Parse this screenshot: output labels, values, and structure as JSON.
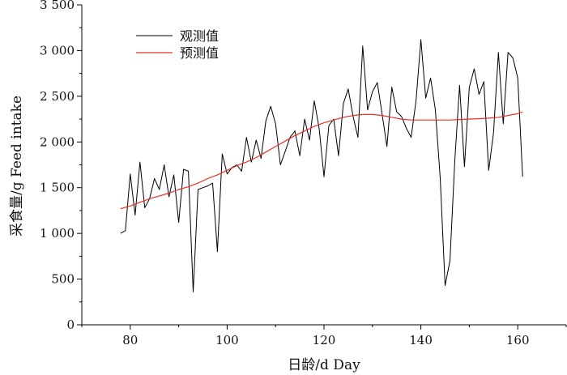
{
  "chart_data": {
    "type": "line",
    "xlabel": "日龄/d Day",
    "ylabel": "采食量/g Feed intake",
    "xlim": [
      70,
      170
    ],
    "ylim": [
      0,
      3500
    ],
    "x_ticks": [
      80,
      100,
      120,
      140,
      160
    ],
    "y_ticks": [
      0,
      500,
      1000,
      1500,
      2000,
      2500,
      3000,
      3500
    ],
    "y_tick_labels": [
      "0",
      "500",
      "1 000",
      "1 500",
      "2 000",
      "2 500",
      "3 000",
      "3 500"
    ],
    "grid": false,
    "legend_position": "top-left",
    "series": [
      {
        "name": "观测值",
        "color": "#000000",
        "x": [
          78,
          79,
          80,
          81,
          82,
          83,
          84,
          85,
          86,
          87,
          88,
          89,
          90,
          91,
          92,
          93,
          94,
          95,
          96,
          97,
          98,
          99,
          100,
          101,
          102,
          103,
          104,
          105,
          106,
          107,
          108,
          109,
          110,
          111,
          112,
          113,
          114,
          115,
          116,
          117,
          118,
          119,
          120,
          121,
          122,
          123,
          124,
          125,
          126,
          127,
          128,
          129,
          130,
          131,
          132,
          133,
          134,
          135,
          136,
          137,
          138,
          139,
          140,
          141,
          142,
          143,
          144,
          145,
          146,
          147,
          148,
          149,
          150,
          151,
          152,
          153,
          154,
          155,
          156,
          157,
          158,
          159,
          160,
          161
        ],
        "y": [
          1000,
          1030,
          1650,
          1200,
          1780,
          1280,
          1380,
          1600,
          1480,
          1750,
          1400,
          1640,
          1120,
          1700,
          1680,
          360,
          1480,
          1500,
          1520,
          1550,
          800,
          1870,
          1650,
          1720,
          1750,
          1680,
          2050,
          1780,
          2020,
          1820,
          2230,
          2390,
          2200,
          1750,
          1900,
          2050,
          2120,
          1850,
          2250,
          2020,
          2450,
          2150,
          1620,
          2180,
          2250,
          1850,
          2420,
          2580,
          2280,
          2050,
          3050,
          2350,
          2550,
          2650,
          2300,
          1950,
          2600,
          2330,
          2280,
          2150,
          2050,
          2450,
          3120,
          2480,
          2700,
          2350,
          1600,
          430,
          700,
          1800,
          2620,
          1730,
          2600,
          2800,
          2520,
          2660,
          1690,
          2100,
          2980,
          2200,
          2980,
          2920,
          2700,
          1620
        ]
      },
      {
        "name": "预测值",
        "color": "#e8302a",
        "x": [
          78,
          80,
          82,
          84,
          86,
          88,
          90,
          92,
          94,
          96,
          98,
          100,
          102,
          104,
          106,
          108,
          110,
          112,
          114,
          116,
          118,
          120,
          122,
          124,
          126,
          128,
          130,
          132,
          134,
          136,
          138,
          140,
          142,
          144,
          146,
          148,
          150,
          152,
          154,
          156,
          158,
          160,
          161
        ],
        "y": [
          1270,
          1300,
          1340,
          1380,
          1410,
          1440,
          1480,
          1510,
          1550,
          1600,
          1640,
          1690,
          1740,
          1780,
          1830,
          1890,
          1950,
          2010,
          2070,
          2120,
          2170,
          2210,
          2240,
          2270,
          2290,
          2300,
          2300,
          2290,
          2270,
          2250,
          2240,
          2240,
          2240,
          2240,
          2240,
          2245,
          2250,
          2255,
          2260,
          2270,
          2290,
          2310,
          2330
        ]
      }
    ]
  }
}
